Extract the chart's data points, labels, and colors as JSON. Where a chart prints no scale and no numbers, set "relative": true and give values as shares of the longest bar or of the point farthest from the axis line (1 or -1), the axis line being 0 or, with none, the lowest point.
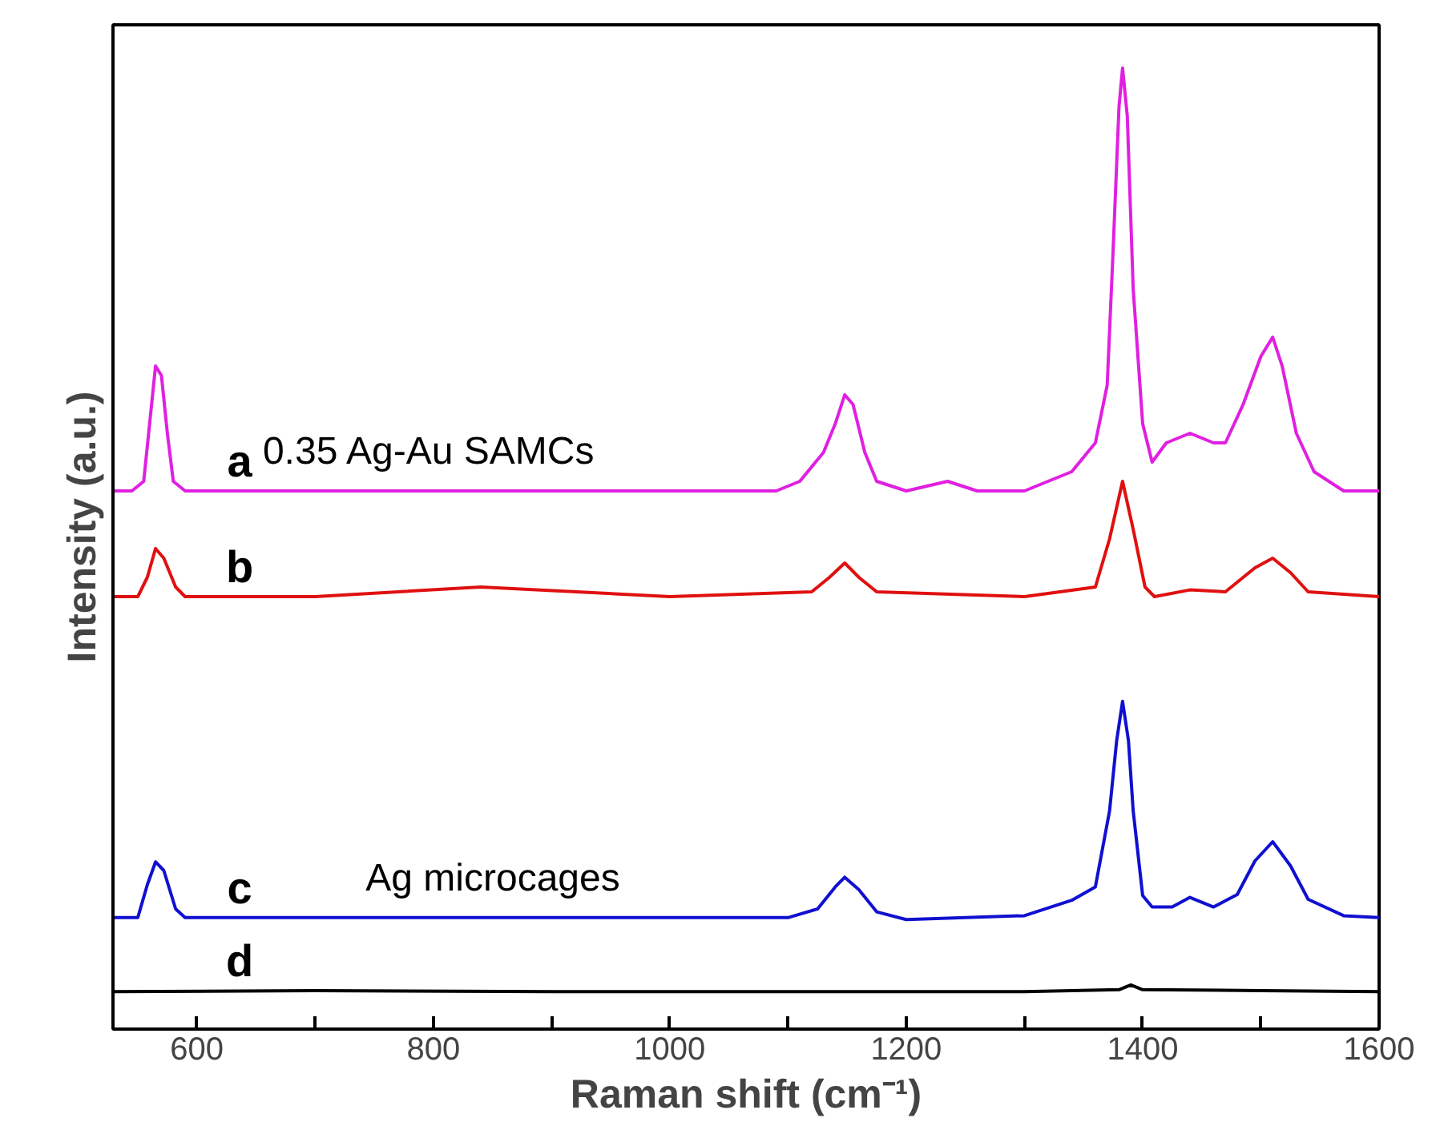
{
  "chart_data": {
    "type": "line",
    "relative": true,
    "xlabel": "Raman shift (cm⁻¹)",
    "ylabel": "Intensity (a.u.)",
    "xlim": [
      529,
      1600
    ],
    "xticks": [
      600,
      {
        "value": 700,
        "label": null
      },
      800,
      {
        "value": 900,
        "label": null
      },
      1000,
      {
        "value": 1100,
        "label": null
      },
      1200,
      {
        "value": 1300,
        "label": null
      },
      1400,
      {
        "value": 1500,
        "label": null
      },
      1600
    ],
    "grid": false,
    "marker": "none",
    "line_style": "solid",
    "annotations": [
      "0.35 Ag-Au SAMCs",
      "Ag microcages"
    ],
    "series": [
      {
        "name": "a",
        "color": "#e020e0",
        "x": [
          530,
          545,
          555,
          560,
          565,
          570,
          575,
          580,
          590,
          700,
          800,
          900,
          1000,
          1050,
          1090,
          1110,
          1130,
          1140,
          1148,
          1155,
          1165,
          1175,
          1200,
          1235,
          1260,
          1300,
          1340,
          1360,
          1370,
          1375,
          1380,
          1383,
          1387,
          1392,
          1400,
          1408,
          1420,
          1440,
          1460,
          1470,
          1485,
          1500,
          1510,
          1518,
          1530,
          1545,
          1570,
          1600
        ],
        "values": [
          0.56,
          0.56,
          0.57,
          0.63,
          0.69,
          0.68,
          0.62,
          0.57,
          0.56,
          0.56,
          0.56,
          0.56,
          0.56,
          0.56,
          0.56,
          0.57,
          0.6,
          0.63,
          0.66,
          0.65,
          0.6,
          0.57,
          0.56,
          0.57,
          0.56,
          0.56,
          0.58,
          0.61,
          0.67,
          0.81,
          0.96,
          1.0,
          0.95,
          0.77,
          0.63,
          0.59,
          0.61,
          0.62,
          0.61,
          0.61,
          0.65,
          0.7,
          0.72,
          0.69,
          0.62,
          0.58,
          0.56,
          0.56
        ]
      },
      {
        "name": "b",
        "color": "#e01010",
        "x": [
          530,
          550,
          558,
          565,
          572,
          582,
          590,
          700,
          840,
          1000,
          1120,
          1135,
          1148,
          1160,
          1175,
          1300,
          1360,
          1372,
          1383,
          1392,
          1402,
          1410,
          1440,
          1470,
          1495,
          1510,
          1525,
          1540,
          1600
        ],
        "values": [
          0.45,
          0.45,
          0.47,
          0.5,
          0.49,
          0.46,
          0.45,
          0.45,
          0.46,
          0.45,
          0.455,
          0.47,
          0.485,
          0.47,
          0.455,
          0.45,
          0.46,
          0.51,
          0.57,
          0.52,
          0.46,
          0.45,
          0.457,
          0.455,
          0.48,
          0.49,
          0.475,
          0.455,
          0.45
        ]
      },
      {
        "name": "c",
        "color": "#1010d0",
        "x": [
          530,
          550,
          558,
          565,
          572,
          582,
          590,
          700,
          900,
          1100,
          1125,
          1140,
          1148,
          1160,
          1175,
          1200,
          1300,
          1340,
          1360,
          1372,
          1378,
          1383,
          1388,
          1392,
          1400,
          1408,
          1425,
          1440,
          1460,
          1480,
          1495,
          1510,
          1525,
          1540,
          1570,
          1600
        ],
        "values": [
          0.116,
          0.116,
          0.15,
          0.174,
          0.165,
          0.125,
          0.116,
          0.116,
          0.116,
          0.116,
          0.125,
          0.148,
          0.158,
          0.145,
          0.122,
          0.114,
          0.118,
          0.134,
          0.148,
          0.227,
          0.3,
          0.341,
          0.3,
          0.227,
          0.139,
          0.127,
          0.127,
          0.137,
          0.127,
          0.14,
          0.175,
          0.195,
          0.17,
          0.135,
          0.118,
          0.116
        ]
      },
      {
        "name": "d",
        "color": "#000000",
        "x": [
          530,
          700,
          900,
          1100,
          1300,
          1380,
          1390,
          1400,
          1500,
          1600
        ],
        "values": [
          0.039,
          0.04,
          0.039,
          0.039,
          0.039,
          0.041,
          0.046,
          0.041,
          0.04,
          0.039
        ]
      }
    ]
  }
}
